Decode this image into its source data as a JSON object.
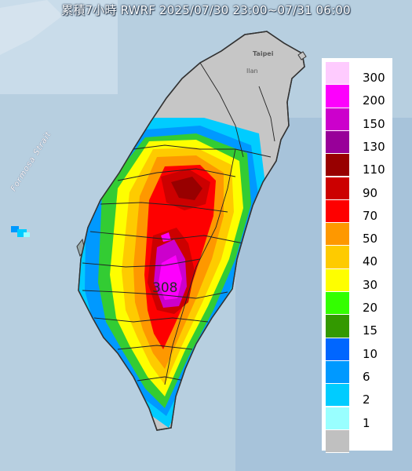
{
  "title": "累積7小時 RWRF 2025/07/30 23:00~07/31 06:00",
  "peak_value_label": "308",
  "place_labels": {
    "taipei": "Taipei",
    "yilan": "Ilan",
    "strait": "Formosa Strait"
  },
  "legend": [
    {
      "label": "300",
      "color": "#fecbfe"
    },
    {
      "label": "200",
      "color": "#fd00fd"
    },
    {
      "label": "150",
      "color": "#cc00cc"
    },
    {
      "label": "130",
      "color": "#980099"
    },
    {
      "label": "110",
      "color": "#980000"
    },
    {
      "label": "90",
      "color": "#cc0000"
    },
    {
      "label": "70",
      "color": "#fe0000"
    },
    {
      "label": "50",
      "color": "#fe9800"
    },
    {
      "label": "40",
      "color": "#fecb00"
    },
    {
      "label": "30",
      "color": "#fefe00"
    },
    {
      "label": "20",
      "color": "#33ff00"
    },
    {
      "label": "15",
      "color": "#339900"
    },
    {
      "label": "10",
      "color": "#0066ff"
    },
    {
      "label": "6",
      "color": "#0099ff"
    },
    {
      "label": "2",
      "color": "#00ccff"
    },
    {
      "label": "1",
      "color": "#99ffff"
    },
    {
      "label": "",
      "color": "#c0c0c0"
    }
  ]
}
